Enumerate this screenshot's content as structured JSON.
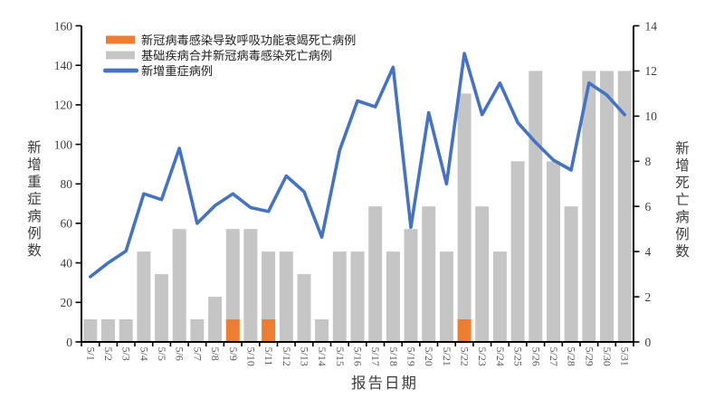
{
  "chart_data": {
    "type": "combo-bar-line",
    "title": "",
    "categories": [
      "5/1",
      "5/2",
      "5/3",
      "5/4",
      "5/5",
      "5/6",
      "5/7",
      "5/8",
      "5/9",
      "5/10",
      "5/11",
      "5/12",
      "5/13",
      "5/14",
      "5/15",
      "5/16",
      "5/17",
      "5/18",
      "5/19",
      "5/20",
      "5/21",
      "5/22",
      "5/23",
      "5/24",
      "5/25",
      "5/26",
      "5/27",
      "5/28",
      "5/29",
      "5/30",
      "5/31"
    ],
    "series": [
      {
        "name": "新冠病毒感染导致呼吸功能衰竭死亡病例",
        "type": "bar",
        "stack": "deaths",
        "axis": "right",
        "color": "#ED7D31",
        "values": [
          0,
          0,
          0,
          0,
          0,
          0,
          0,
          0,
          1,
          0,
          1,
          0,
          0,
          0,
          0,
          0,
          0,
          0,
          0,
          0,
          0,
          1,
          0,
          0,
          0,
          0,
          0,
          0,
          0,
          0,
          0
        ]
      },
      {
        "name": "基础疾病合并新冠病毒感染死亡病例",
        "type": "bar",
        "stack": "deaths",
        "axis": "right",
        "color": "#C5C5C5",
        "values": [
          1,
          1,
          1,
          4,
          3,
          5,
          1,
          2,
          4,
          5,
          3,
          4,
          3,
          1,
          4,
          4,
          6,
          4,
          5,
          6,
          4,
          10,
          6,
          4,
          8,
          12,
          8,
          6,
          12,
          12,
          12
        ]
      },
      {
        "name": "新增重症病例",
        "type": "line",
        "axis": "left",
        "color": "#4472C4",
        "values": [
          33,
          40,
          46,
          75,
          72,
          98,
          60,
          69,
          75,
          68,
          66,
          84,
          76,
          53,
          97,
          122,
          119,
          139,
          58,
          116,
          80,
          146,
          115,
          131,
          111,
          101,
          92,
          87,
          131,
          125,
          115
        ]
      }
    ],
    "left_axis": {
      "title": "新增重症病例数",
      "min": 0,
      "max": 160,
      "step": 20
    },
    "right_axis": {
      "title": "新增死亡病例数",
      "min": 0,
      "max": 14,
      "step": 2
    },
    "x_axis": {
      "title": "报告日期"
    },
    "legend": {
      "position": "top-left-inside"
    },
    "grid": false,
    "background": "#FFFFFF"
  }
}
